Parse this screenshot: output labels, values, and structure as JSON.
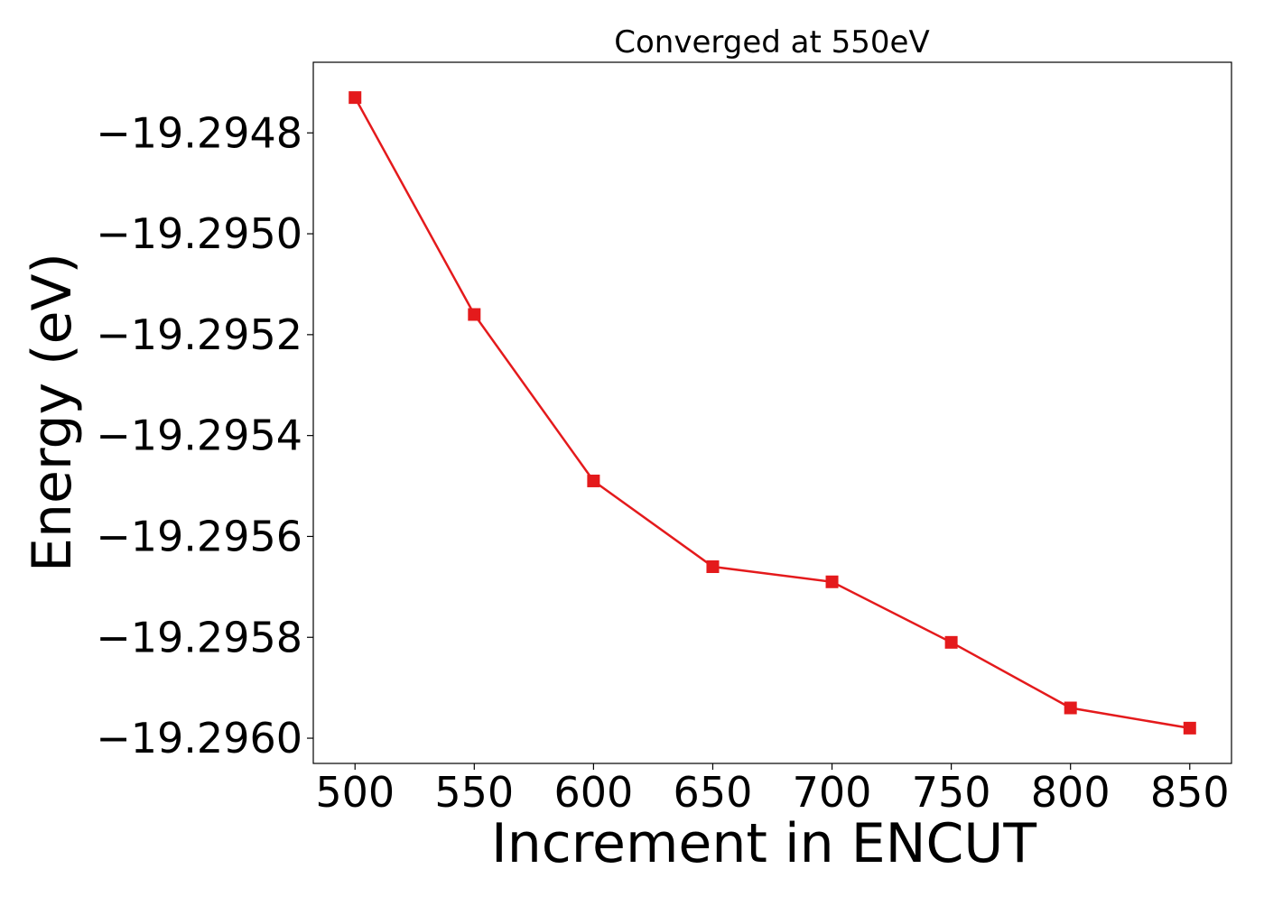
{
  "chart_data": {
    "type": "line",
    "title": "Converged at 550eV",
    "xlabel": "Increment in ENCUT",
    "ylabel": "Energy (eV)",
    "x": [
      500,
      550,
      600,
      650,
      700,
      750,
      800,
      850
    ],
    "series": [
      {
        "values": [
          -19.29473,
          -19.29516,
          -19.29549,
          -19.29566,
          -19.29569,
          -19.29581,
          -19.29594,
          -19.29598
        ],
        "color": "#e41a1c",
        "marker": "square"
      }
    ],
    "xticks": [
      500,
      550,
      600,
      650,
      700,
      750,
      800,
      850
    ],
    "xtick_labels": [
      "500",
      "550",
      "600",
      "650",
      "700",
      "750",
      "800",
      "850"
    ],
    "yticks": [
      -19.2948,
      -19.295,
      -19.2952,
      -19.2954,
      -19.2956,
      -19.2958,
      -19.296
    ],
    "ytick_labels": [
      "−19.2948",
      "−19.2950",
      "−19.2952",
      "−19.2954",
      "−19.2956",
      "−19.2958",
      "−19.2960"
    ],
    "xlim": [
      482.5,
      867.5
    ],
    "ylim": [
      -19.29605,
      -19.29466
    ],
    "grid": false,
    "legend": false
  }
}
